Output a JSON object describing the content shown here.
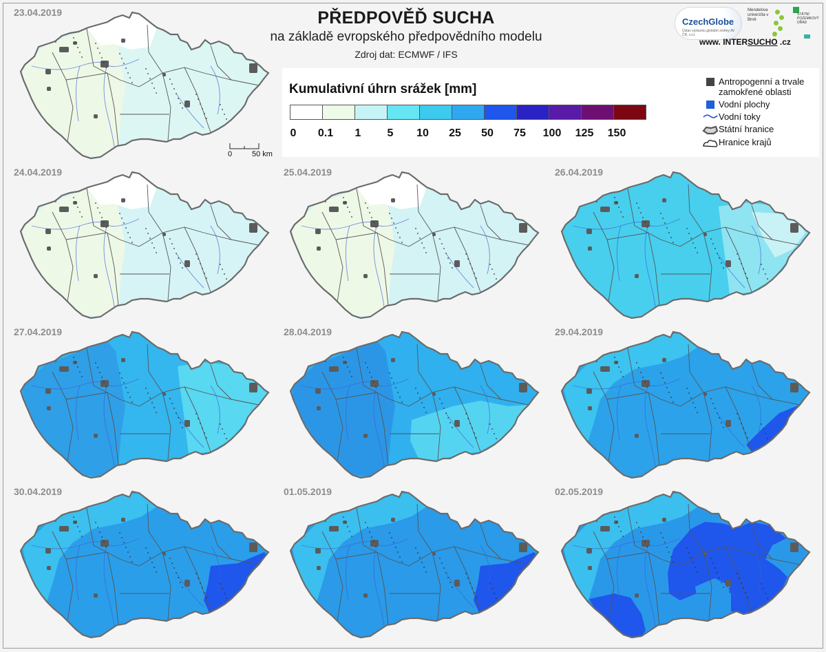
{
  "header": {
    "title": "PŘEDPOVĚĎ SUCHA",
    "subtitle": "na základě evropského předpovědního modelu",
    "source": "Zdroj dat: ECMWF / IFS"
  },
  "logos": {
    "czechglobe": "CzechGlobe",
    "czechglobe_small": "Ústav výzkumu globální změny AV ČR, v.v.i.",
    "mendel": "Mendelova univerzita v Brně",
    "spu": "STÁTNÍ POZEMKOVÝ ÚŘAD",
    "website_pre": "www. INTER",
    "website_bold": "SUCHO",
    "website_post": " .cz"
  },
  "legend": {
    "title": "Kumulativní úhrn srážek [mm]",
    "ticks": [
      "0",
      "0.1",
      "1",
      "5",
      "10",
      "25",
      "50",
      "75",
      "100",
      "125",
      "150"
    ],
    "colors": [
      "#ffffff",
      "#edfbe8",
      "#c6f4f6",
      "#66e6f2",
      "#3ccaef",
      "#2fa8f0",
      "#1f56ec",
      "#2a22c4",
      "#5a1aa8",
      "#6d0f72",
      "#7c0712"
    ]
  },
  "key": {
    "antropogenni": "Antropogenní a trvale zamokřené oblasti",
    "vodni_plochy": "Vodní plochy",
    "vodni_toky": "Vodní toky",
    "statni_hranice": "Státní hranice",
    "hranice_kraju": "Hranice krajů",
    "antropogenni_color": "#444444",
    "vodni_plochy_color": "#1f5fd8"
  },
  "scalebar": {
    "start": "0",
    "end": "50 km"
  },
  "maps": [
    {
      "date": "23.04.2019",
      "base": "#dcf6f4",
      "zones": [
        {
          "shape": "west",
          "color": "#eef8e6"
        },
        {
          "shape": "north",
          "color": "#ffffff"
        }
      ]
    },
    {
      "date": "24.04.2019",
      "base": "#d6f4f5",
      "zones": [
        {
          "shape": "west",
          "color": "#eef8e6"
        },
        {
          "shape": "north",
          "color": "#ffffff"
        }
      ]
    },
    {
      "date": "25.04.2019",
      "base": "#d3f3f5",
      "zones": [
        {
          "shape": "west",
          "color": "#eef8e6"
        },
        {
          "shape": "north",
          "color": "#ffffff"
        }
      ]
    },
    {
      "date": "26.04.2019",
      "base": "#48cfee",
      "zones": [
        {
          "shape": "east",
          "color": "#8fe4f2"
        },
        {
          "shape": "northeast",
          "color": "#c9f2f6"
        }
      ]
    },
    {
      "date": "27.04.2019",
      "base": "#34b6ee",
      "zones": [
        {
          "shape": "west",
          "color": "#2f9fe8"
        },
        {
          "shape": "east",
          "color": "#58d8f1"
        }
      ]
    },
    {
      "date": "28.04.2019",
      "base": "#30b0ee",
      "zones": [
        {
          "shape": "west",
          "color": "#2c96e6"
        },
        {
          "shape": "southeast",
          "color": "#55d4f1"
        }
      ]
    },
    {
      "date": "29.04.2019",
      "base": "#2ca2ea",
      "zones": [
        {
          "shape": "northwest",
          "color": "#3cc3ef"
        },
        {
          "shape": "tip",
          "color": "#1f56ec"
        }
      ]
    },
    {
      "date": "30.04.2019",
      "base": "#2b9eea",
      "zones": [
        {
          "shape": "northwest",
          "color": "#3bc0ef"
        },
        {
          "shape": "tipbig",
          "color": "#1f56ec"
        }
      ]
    },
    {
      "date": "01.05.2019",
      "base": "#2a9ae9",
      "zones": [
        {
          "shape": "northwest",
          "color": "#3bbfef"
        },
        {
          "shape": "tipbig",
          "color": "#1f56ec"
        }
      ]
    },
    {
      "date": "02.05.2019",
      "base": "#2a98e9",
      "zones": [
        {
          "shape": "northwest",
          "color": "#3bbfef"
        },
        {
          "shape": "band",
          "color": "#1f56ec"
        },
        {
          "shape": "southwest",
          "color": "#1f56ec"
        },
        {
          "shape": "island",
          "color": "#2a98e9"
        }
      ]
    }
  ]
}
